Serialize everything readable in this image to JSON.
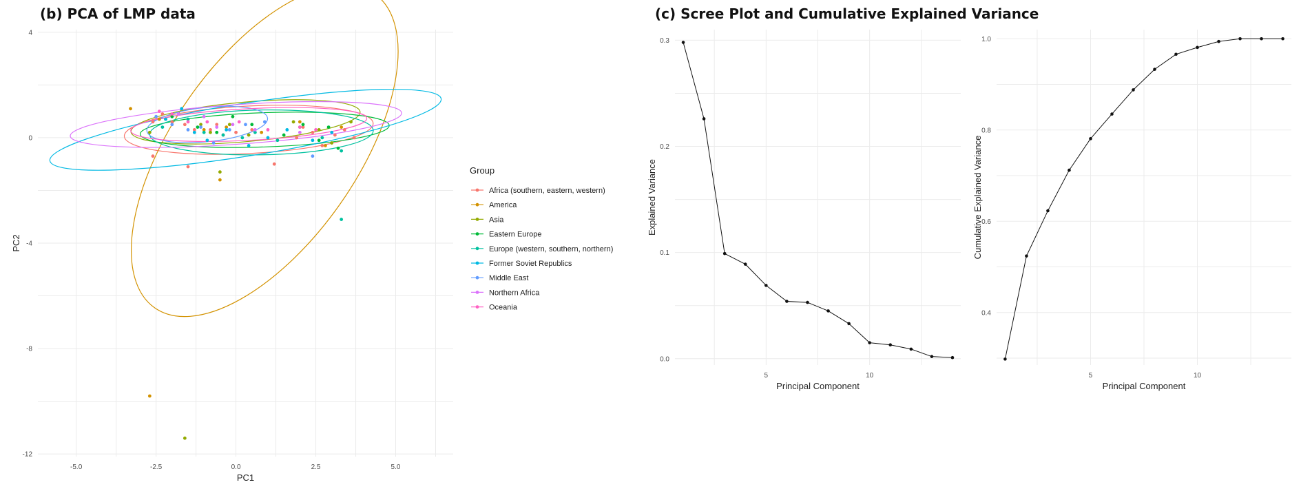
{
  "titles": {
    "pca": "(b) PCA of LMP data",
    "scree": "(c) Scree Plot and Cumulative Explained Variance"
  },
  "chart_data": [
    {
      "type": "scatter",
      "xlabel": "PC1",
      "ylabel": "PC2",
      "xlim": [
        -6.2,
        6.8
      ],
      "ylim": [
        -12.1,
        4.1
      ],
      "x_ticks": [
        -5,
        -2.5,
        0,
        2.5,
        5
      ],
      "x_tick_labels": [
        "-5.0",
        "-2.5",
        "0.0",
        "2.5",
        "5.0"
      ],
      "y_ticks": [
        4,
        0,
        -4,
        -8,
        -12
      ],
      "legend": {
        "title": "Group",
        "placement": "right"
      },
      "grid": true,
      "series": [
        {
          "name": "Africa (southern, eastern, western)",
          "color": "#F8766D",
          "points": [
            [
              -2.6,
              0.6
            ],
            [
              -2.6,
              -0.7
            ],
            [
              -2.3,
              0.9
            ],
            [
              -1.6,
              0.5
            ],
            [
              -1.3,
              0.3
            ],
            [
              -0.8,
              0.3
            ],
            [
              -0.6,
              0.5
            ],
            [
              -0.4,
              0.1
            ],
            [
              0.0,
              0.2
            ],
            [
              0.5,
              0.3
            ],
            [
              1.2,
              -1.0
            ],
            [
              1.9,
              0.0
            ],
            [
              2.1,
              0.4
            ],
            [
              2.4,
              0.2
            ],
            [
              2.7,
              -0.3
            ],
            [
              3.1,
              0.1
            ],
            [
              3.4,
              0.3
            ],
            [
              3.7,
              0.0
            ],
            [
              -1.5,
              -1.1
            ],
            [
              -2.0,
              0.6
            ]
          ],
          "ellipse": {
            "cx": 0.4,
            "cy": 0.3,
            "rx": 3.9,
            "ry": 0.9,
            "angle": -3
          }
        },
        {
          "name": "America",
          "color": "#D39200",
          "points": [
            [
              -3.3,
              1.1
            ],
            [
              -2.7,
              -9.8
            ],
            [
              -2.4,
              0.7
            ],
            [
              -1.0,
              0.3
            ],
            [
              -0.5,
              -1.6
            ],
            [
              -0.3,
              0.4
            ],
            [
              0.8,
              0.2
            ],
            [
              2.0,
              0.6
            ],
            [
              2.8,
              -0.3
            ],
            [
              3.3,
              0.4
            ]
          ],
          "ellipse": {
            "cx": 0.9,
            "cy": -0.5,
            "rx": 6.0,
            "ry": 3.5,
            "angle": -55
          }
        },
        {
          "name": "Asia",
          "color": "#93AA00",
          "points": [
            [
              -2.7,
              0.2
            ],
            [
              -2.2,
              0.7
            ],
            [
              -1.6,
              -11.4
            ],
            [
              -1.1,
              0.5
            ],
            [
              -0.8,
              0.2
            ],
            [
              -0.5,
              -1.3
            ],
            [
              -0.2,
              0.5
            ],
            [
              0.4,
              0.1
            ],
            [
              1.8,
              0.6
            ],
            [
              2.6,
              0.3
            ],
            [
              3.0,
              -0.2
            ],
            [
              3.6,
              0.6
            ]
          ],
          "ellipse": {
            "cx": 0.3,
            "cy": 0.6,
            "rx": 3.6,
            "ry": 0.75,
            "angle": -5
          }
        },
        {
          "name": "Eastern Europe",
          "color": "#00BA38",
          "points": [
            [
              -2.0,
              0.8
            ],
            [
              -1.2,
              0.4
            ],
            [
              -0.6,
              0.2
            ],
            [
              -0.1,
              0.8
            ],
            [
              0.5,
              0.5
            ],
            [
              1.5,
              0.1
            ],
            [
              2.1,
              0.5
            ],
            [
              2.6,
              -0.1
            ],
            [
              2.9,
              0.4
            ],
            [
              3.2,
              -0.4
            ]
          ],
          "ellipse": {
            "cx": 0.9,
            "cy": 0.3,
            "rx": 3.9,
            "ry": 0.65,
            "angle": -2
          }
        },
        {
          "name": "Europe (western, southern, northern)",
          "color": "#00C19F",
          "points": [
            [
              -2.3,
              0.4
            ],
            [
              -1.5,
              0.7
            ],
            [
              -1.0,
              0.2
            ],
            [
              -0.4,
              0.1
            ],
            [
              0.2,
              0.0
            ],
            [
              0.6,
              0.2
            ],
            [
              1.3,
              -0.1
            ],
            [
              2.0,
              0.4
            ],
            [
              2.7,
              0.0
            ],
            [
              3.3,
              -0.5
            ],
            [
              3.3,
              -3.1
            ]
          ],
          "ellipse": {
            "cx": 0.8,
            "cy": 0.2,
            "rx": 3.5,
            "ry": 0.85,
            "angle": -1
          }
        },
        {
          "name": "Former Soviet Republics",
          "color": "#00B9E3",
          "points": [
            [
              -2.2,
              0.7
            ],
            [
              -1.7,
              1.1
            ],
            [
              -1.3,
              0.2
            ],
            [
              -0.9,
              -0.1
            ],
            [
              -0.3,
              0.3
            ],
            [
              0.4,
              -0.3
            ],
            [
              1.0,
              0.0
            ],
            [
              1.6,
              0.3
            ],
            [
              2.4,
              -0.1
            ],
            [
              3.0,
              0.2
            ]
          ],
          "ellipse": {
            "cx": 0.3,
            "cy": 0.3,
            "rx": 6.2,
            "ry": 1.0,
            "angle": -9
          }
        },
        {
          "name": "Middle East",
          "color": "#619CFF",
          "points": [
            [
              -2.5,
              0.8
            ],
            [
              -2.0,
              0.5
            ],
            [
              -1.5,
              0.3
            ],
            [
              -1.1,
              0.4
            ],
            [
              -0.7,
              -0.2
            ],
            [
              -0.2,
              0.3
            ],
            [
              0.3,
              0.5
            ],
            [
              0.9,
              0.6
            ],
            [
              2.4,
              -0.7
            ]
          ],
          "ellipse": {
            "cx": -0.9,
            "cy": 0.5,
            "rx": 1.9,
            "ry": 0.65,
            "angle": -6
          }
        },
        {
          "name": "Northern Africa",
          "color": "#DB72FB",
          "points": [
            [
              -1.8,
              0.9
            ],
            [
              -1.0,
              0.8
            ],
            [
              -0.6,
              0.4
            ],
            [
              -0.1,
              0.5
            ],
            [
              0.6,
              0.3
            ],
            [
              2.0,
              0.2
            ]
          ],
          "ellipse": {
            "cx": 0.0,
            "cy": 0.5,
            "rx": 5.2,
            "ry": 0.75,
            "angle": -4
          }
        },
        {
          "name": "Oceania",
          "color": "#FF61C3",
          "points": [
            [
              -2.4,
              1.0
            ],
            [
              -2.0,
              0.9
            ],
            [
              -1.5,
              0.6
            ],
            [
              -0.9,
              0.6
            ],
            [
              0.1,
              0.6
            ],
            [
              1.0,
              0.3
            ],
            [
              2.0,
              0.4
            ],
            [
              2.5,
              0.3
            ]
          ],
          "ellipse": {
            "cx": 0.4,
            "cy": 0.5,
            "rx": 3.7,
            "ry": 0.6,
            "angle": -3
          }
        }
      ]
    },
    {
      "type": "line",
      "xlabel": "Principal Component",
      "ylabel": "Explained Variance",
      "xlim": [
        0.6,
        14.4
      ],
      "ylim": [
        -0.006,
        0.31
      ],
      "x_ticks": [
        5,
        10
      ],
      "y_ticks": [
        0.0,
        0.1,
        0.2,
        0.3
      ],
      "y_tick_labels": [
        "0.0",
        "0.1",
        "0.2",
        "0.3"
      ],
      "grid": true,
      "x": [
        1,
        2,
        3,
        4,
        5,
        6,
        7,
        8,
        9,
        10,
        11,
        12,
        13,
        14
      ],
      "values": [
        0.298,
        0.226,
        0.099,
        0.089,
        0.069,
        0.054,
        0.053,
        0.045,
        0.033,
        0.015,
        0.013,
        0.009,
        0.002,
        0.001
      ]
    },
    {
      "type": "line",
      "xlabel": "Principal Component",
      "ylabel": "Cumulative Explained Variance",
      "xlim": [
        0.6,
        14.4
      ],
      "ylim": [
        0.285,
        1.02
      ],
      "x_ticks": [
        5,
        10
      ],
      "y_ticks": [
        0.4,
        0.6,
        0.8,
        1.0
      ],
      "y_tick_labels": [
        "0.4",
        "0.6",
        "0.8",
        "1.0"
      ],
      "grid": true,
      "x": [
        1,
        2,
        3,
        4,
        5,
        6,
        7,
        8,
        9,
        10,
        11,
        12,
        13,
        14
      ],
      "values": [
        0.298,
        0.524,
        0.623,
        0.712,
        0.781,
        0.835,
        0.888,
        0.933,
        0.966,
        0.981,
        0.994,
        1.0,
        1.0,
        1.0
      ]
    }
  ]
}
